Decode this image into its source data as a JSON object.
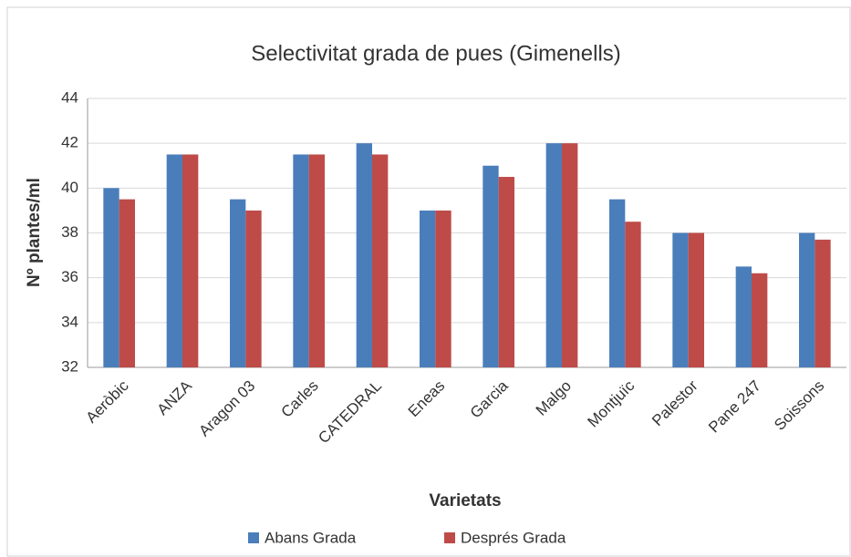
{
  "chart_data": {
    "type": "bar",
    "title": "Selectivitat grada de pues (Gimenells)",
    "x_label": "Varietats",
    "y_label": "Nº plantes/ml",
    "categories": [
      "Aeròbic",
      "ANZA",
      "Aragon 03",
      "Carles",
      "CATEDRAL",
      "Eneas",
      "Garcia",
      "Malgo",
      "Montjuïc",
      "Palestor",
      "Pane 247",
      "Soissons"
    ],
    "series": [
      {
        "name": "Abans Grada",
        "color": "#4a7ebb",
        "values": [
          40,
          41.5,
          39.5,
          41.5,
          42,
          39,
          41,
          42,
          39.5,
          38,
          36.5,
          38
        ]
      },
      {
        "name": "Després Grada",
        "color": "#be4b48",
        "values": [
          39.5,
          41.5,
          39,
          41.5,
          41.5,
          39,
          40.5,
          42,
          38.5,
          38,
          36.2,
          37.7
        ]
      }
    ],
    "ylim": [
      32,
      44
    ],
    "yticks": [
      32,
      34,
      36,
      38,
      40,
      42,
      44
    ],
    "grid": true,
    "legend": "bottom"
  }
}
